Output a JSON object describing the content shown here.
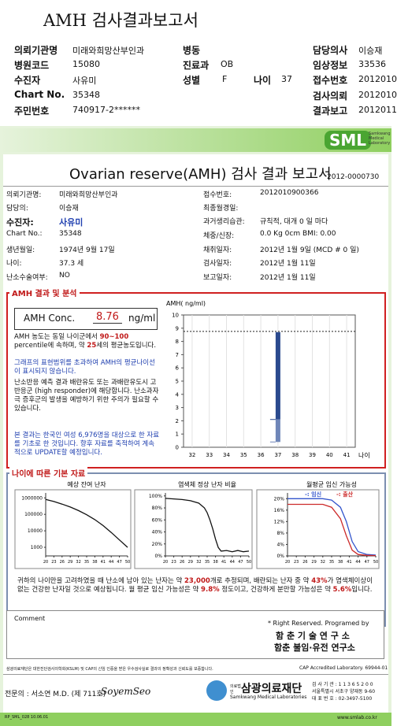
{
  "header": {
    "title": "AMH 검사결과보고서",
    "fields": [
      {
        "label": "의뢰기관명",
        "value": "미래와희망산부인과"
      },
      {
        "label": "병원코드",
        "value": "15080"
      },
      {
        "label": "수진자",
        "value": "사유미"
      },
      {
        "label": "Chart No.",
        "value": "35348"
      },
      {
        "label": "주민번호",
        "value": "740917-2******"
      },
      {
        "label": "병동"
      },
      {
        "label": "진료과",
        "value": "OB"
      },
      {
        "label": "성별",
        "value": "F"
      },
      {
        "label": "나이",
        "value": "37"
      },
      {
        "label": "담당의사",
        "value": "이승재"
      },
      {
        "label": "임상정보",
        "value": "33536"
      },
      {
        "label": "접수번호",
        "value": "2012010"
      },
      {
        "label": "검사의뢰",
        "value": "2012010"
      },
      {
        "label": "결과보고",
        "value": "2012011"
      }
    ]
  },
  "report": {
    "logo": "SML",
    "logo_sub": "Samkwang Medical Laboratory",
    "title": "Ovarian reserve(AMH) 검사 결과 보고서",
    "number": "2012-0000730",
    "info_left": [
      {
        "label": "의뢰기관명:",
        "value": "미래와희망산부인과"
      },
      {
        "label": "담당의:",
        "value": "이승재"
      },
      {
        "label": "수진자:",
        "value": "사유미"
      },
      {
        "label": "Chart No.:",
        "value": "35348"
      },
      {
        "label": "생년월일:",
        "value": "1974년 9월 17일"
      },
      {
        "label": "나이:",
        "value": "37.3 세"
      },
      {
        "label": "난소수술여부:",
        "value": "NO"
      }
    ],
    "info_right": [
      {
        "label": "접수번호:",
        "value": "2012010900366"
      },
      {
        "label": "최종월경일:"
      },
      {
        "label": "과거생리습관:",
        "value": "규칙적, 대개   0 일 마다"
      },
      {
        "label": "체중/신장:",
        "value": "0.0 Kg      0cm     BMI:   0.00"
      },
      {
        "label": "채취일자:",
        "value": "2012년 1월 9일    (MCD #  0 일)"
      },
      {
        "label": "검사일자:",
        "value": "2012년 1월 11일"
      },
      {
        "label": "보고일자:",
        "value": "2012년 1월 11일"
      }
    ]
  },
  "amh": {
    "section": "AMH 결과 및 분석",
    "label": "AMH Conc.",
    "value": 8.76,
    "unit": "ng/ml",
    "note1": [
      "AMH 농도는 동일 나이군에서 ",
      "90~100",
      "percentile에 속하며, 약 ",
      "25",
      "세의 평균농도입니다."
    ],
    "note2": "그래프의 표현범위를 초과하여 AMH의 평균나이선이 표시되지 않습니다.",
    "note3": "난소반응 예측 결과 배란유도 또는 과배란유도시 고반응군 (high responder)에 해당합니다. 난소과자극 증후군의 발생을 예방하기 위한 주의가 필요할 수 있습니다.",
    "note4": "본 결과는 한국인 여성 6,976명을 대상으로 한 자료를 기초로 한 것입니다. 향후 자료를 축적하여 계속적으로 UPDATE할 예정입니다."
  },
  "age": {
    "section": "나이에 따른 기본 자료",
    "summary": [
      "귀하의 나이만을 고려하였을 때 난소에 남아 있는 난자는 약 ",
      "23,000",
      "개로 추정되며, 배란되는 난자 중 약 ",
      "43%",
      "가 염색체이상이 없는 건강한 난자일 것으로 예상됩니다. 월 평균 임신 가능성은 약 ",
      "9.8%",
      " 정도이고, 건강하게 분만할 가능성은 약 ",
      "5.6%",
      "입니다."
    ]
  },
  "comment": {
    "label": "Comment",
    "credits": [
      "* Right Reserved. Programed by",
      "함 춘 기 술 연 구 소",
      "함춘 불임·유전 연구소"
    ]
  },
  "footer": {
    "certification": "삼광의료재단은 대한진단검사의학회(KSLM) 및 CAP의 신임 인증을 받은 우수검사실로 결과의 정확성과 신뢰도를 보증합니다.",
    "cap": "CAP Accredited Laboratory.  69944-01",
    "doctor": "전문의 : 서소연 M.D. (제 711호)",
    "signature": "SoyemSeo",
    "badge": "의료법인",
    "org": "삼광의료재단",
    "org_en": "Samkwang Medical Laboratories",
    "contacts": [
      "검 사 기 관 : 1 1 3 6 5 2 0 0",
      "서울특별시 서초구 양재동 9-60",
      "대 표 번 호 : 02-3497-5100"
    ],
    "form": "RP_SML_028 10.06.01",
    "url": "www.smlab.co.kr"
  },
  "chart_data": [
    {
      "type": "range",
      "title": "AMH( ng/ml)",
      "x_label": "나이",
      "categories": [
        "32",
        "33",
        "34",
        "35",
        "36",
        "37",
        "38",
        "39",
        "40",
        "41"
      ],
      "ylim": [
        0,
        10
      ],
      "yticks": [
        0,
        1,
        2,
        3,
        4,
        5,
        6,
        7,
        8,
        9,
        10
      ],
      "series": [
        {
          "color": "#2b4a8e",
          "low": [
            null,
            null,
            null,
            null,
            null,
            2.1,
            null,
            null,
            null,
            null
          ],
          "high": [
            null,
            null,
            null,
            null,
            null,
            8.7,
            null,
            null,
            null,
            null
          ]
        },
        {
          "color": "#6f86b8",
          "low": [
            null,
            null,
            null,
            null,
            null,
            0.4,
            null,
            null,
            null,
            null
          ],
          "high": [
            null,
            null,
            null,
            null,
            null,
            2.1,
            null,
            null,
            null,
            null
          ]
        }
      ]
    },
    {
      "type": "line",
      "title": "예상 잔여 난자",
      "log_y": true,
      "x": [
        20,
        23,
        26,
        29,
        32,
        35,
        38,
        41,
        44,
        47,
        50
      ],
      "xlim": [
        20,
        50
      ],
      "xticks": [
        20,
        23,
        26,
        29,
        32,
        35,
        38,
        41,
        44,
        47,
        50
      ],
      "ylim": [
        300,
        2000000
      ],
      "yticks": [
        1000,
        10000,
        100000,
        1000000
      ],
      "series": [
        {
          "color": "#111111",
          "values": [
            800000,
            600000,
            420000,
            280000,
            170000,
            95000,
            48000,
            21000,
            8000,
            2800,
            1000
          ]
        }
      ]
    },
    {
      "type": "line",
      "title": "염색체 정상 난자 비율",
      "x": [
        20,
        23,
        26,
        29,
        32,
        34,
        35,
        36,
        37,
        38,
        39,
        40,
        42,
        44,
        46,
        48,
        50
      ],
      "xlim": [
        20,
        50
      ],
      "xticks": [
        20,
        23,
        26,
        29,
        32,
        35,
        38,
        41,
        44,
        47,
        50
      ],
      "ylim": [
        0,
        105
      ],
      "yticks": [
        {
          "value": 0,
          "label": "0%"
        },
        {
          "value": 20,
          "label": "20%"
        },
        {
          "value": 40,
          "label": "40%"
        },
        {
          "value": 60,
          "label": "60%"
        },
        {
          "value": 80,
          "label": "80%"
        },
        {
          "value": 100,
          "label": "100%"
        }
      ],
      "series": [
        {
          "color": "#111111",
          "values": [
            96,
            95,
            94,
            92,
            88,
            80,
            72,
            60,
            45,
            28,
            14,
            8,
            9,
            7,
            9,
            7,
            8
          ]
        }
      ]
    },
    {
      "type": "line",
      "title": "월평균 임신 가능성",
      "x": [
        20,
        23,
        26,
        29,
        32,
        35,
        38,
        40,
        42,
        44,
        47,
        50
      ],
      "xlim": [
        20,
        50
      ],
      "xticks": [
        20,
        23,
        26,
        29,
        32,
        35,
        38,
        41,
        44,
        47,
        50
      ],
      "ylim": [
        0,
        22
      ],
      "yticks": [
        {
          "value": 0,
          "label": "0%"
        },
        {
          "value": 4,
          "label": "4%"
        },
        {
          "value": 8,
          "label": "8%"
        },
        {
          "value": 12,
          "label": "12%"
        },
        {
          "value": 16,
          "label": "16%"
        },
        {
          "value": 20,
          "label": "20%"
        }
      ],
      "series": [
        {
          "name": "-: 임신",
          "color": "#3355cc",
          "values": [
            20,
            20,
            20,
            20,
            20,
            19.5,
            17,
            12,
            5,
            1.5,
            0.5,
            0.3
          ]
        },
        {
          "name": "-: 출산",
          "color": "#cc2a2a",
          "values": [
            18,
            18,
            18,
            18,
            18,
            17,
            13,
            7,
            2,
            0.5,
            0.2,
            0.1
          ]
        }
      ]
    }
  ]
}
